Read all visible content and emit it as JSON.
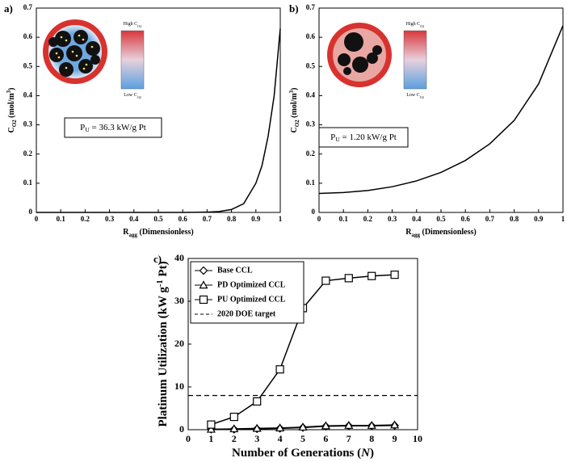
{
  "chart_data": [
    {
      "type": "line",
      "panel_label": "a)",
      "xlabel": [
        {
          "text": "R"
        },
        {
          "text": "agg",
          "sub": true
        },
        {
          "text": " (Dimensionless)"
        }
      ],
      "ylabel": [
        {
          "text": "C"
        },
        {
          "text": "O2",
          "sub": true
        },
        {
          "text": " (mol/m"
        },
        {
          "text": "3",
          "sup": true
        },
        {
          "text": ")"
        }
      ],
      "annotation": [
        {
          "text": "P"
        },
        {
          "text": "U",
          "sub": true
        },
        {
          "text": " = 36.3 kW/g Pt"
        }
      ],
      "colorbar": {
        "high": [
          {
            "text": "High C"
          },
          {
            "text": "O2",
            "sub": true
          }
        ],
        "low": [
          {
            "text": "Low C"
          },
          {
            "text": "O2",
            "sub": true
          }
        ]
      },
      "x": [
        0,
        0.1,
        0.2,
        0.3,
        0.4,
        0.5,
        0.6,
        0.7,
        0.75,
        0.8,
        0.85,
        0.9,
        0.925,
        0.95,
        0.975,
        1
      ],
      "values": [
        0,
        0,
        0,
        0,
        0,
        0,
        0,
        0.001,
        0.003,
        0.01,
        0.03,
        0.1,
        0.16,
        0.26,
        0.4,
        0.63
      ],
      "color": "#000000",
      "xlim": [
        0,
        1
      ],
      "xticks": [
        0,
        0.1,
        0.2,
        0.3,
        0.4,
        0.5,
        0.6,
        0.7,
        0.8,
        0.9,
        1
      ],
      "ylim": [
        0,
        0.7
      ],
      "yticks": [
        0,
        0.1,
        0.2,
        0.3,
        0.4,
        0.5,
        0.6,
        0.7
      ]
    },
    {
      "type": "line",
      "panel_label": "b)",
      "xlabel": [
        {
          "text": "R"
        },
        {
          "text": "agg",
          "sub": true
        },
        {
          "text": " (Dimensionless)"
        }
      ],
      "ylabel": [
        {
          "text": "C"
        },
        {
          "text": "O2",
          "sub": true
        },
        {
          "text": " (mol/m"
        },
        {
          "text": "3",
          "sup": true
        },
        {
          "text": ")"
        }
      ],
      "annotation": [
        {
          "text": "P"
        },
        {
          "text": "U",
          "sub": true
        },
        {
          "text": " = 1.20 kW/g Pt"
        }
      ],
      "colorbar": {
        "high": [
          {
            "text": "High C"
          },
          {
            "text": "O2",
            "sub": true
          }
        ],
        "low": [
          {
            "text": "Low C"
          },
          {
            "text": "O2",
            "sub": true
          }
        ]
      },
      "x": [
        0,
        0.1,
        0.2,
        0.3,
        0.4,
        0.5,
        0.6,
        0.7,
        0.8,
        0.9,
        1
      ],
      "values": [
        0.065,
        0.068,
        0.075,
        0.088,
        0.108,
        0.137,
        0.178,
        0.235,
        0.315,
        0.44,
        0.64
      ],
      "color": "#000000",
      "xlim": [
        0,
        1
      ],
      "xticks": [
        0,
        0.1,
        0.2,
        0.3,
        0.4,
        0.5,
        0.6,
        0.7,
        0.8,
        0.9,
        1
      ],
      "ylim": [
        0,
        0.7
      ],
      "yticks": [
        0,
        0.1,
        0.2,
        0.3,
        0.4,
        0.5,
        0.6,
        0.7
      ]
    },
    {
      "type": "line-markers",
      "panel_label": "c)",
      "xlabel": [
        {
          "text": "Number of Generations ("
        },
        {
          "text": "N",
          "italic": true
        },
        {
          "text": ")"
        }
      ],
      "ylabel": [
        {
          "text": "Platinum Utilization (kW g"
        },
        {
          "text": "-1",
          "sup": true
        },
        {
          "text": " Pt)"
        }
      ],
      "x": [
        1,
        2,
        3,
        4,
        5,
        6,
        7,
        8,
        9
      ],
      "series": [
        {
          "name": "Base CCL",
          "marker": "diamond",
          "color": "#000000",
          "values": [
            0.1,
            0.1,
            0.2,
            0.3,
            0.5,
            0.8,
            0.9,
            0.9,
            1.0
          ]
        },
        {
          "name": "PD Optimized CCL",
          "marker": "triangle",
          "color": "#000000",
          "values": [
            0.1,
            0.2,
            0.3,
            0.4,
            0.6,
            0.9,
            1.0,
            1.0,
            1.1
          ]
        },
        {
          "name": "PU Optimized CCL",
          "marker": "square",
          "color": "#000000",
          "values": [
            1.2,
            3.0,
            6.6,
            14.1,
            28.4,
            34.8,
            35.4,
            35.9,
            36.2
          ]
        }
      ],
      "reference_lines": [
        {
          "name": "2020 DOE target",
          "value": 8,
          "style": "dashed"
        }
      ],
      "xlim": [
        0,
        10
      ],
      "xticks": [
        0,
        1,
        2,
        3,
        4,
        5,
        6,
        7,
        8,
        9,
        10
      ],
      "ylim": [
        0,
        40
      ],
      "yticks": [
        0,
        10,
        20,
        30,
        40
      ],
      "legend": "upper left"
    }
  ]
}
